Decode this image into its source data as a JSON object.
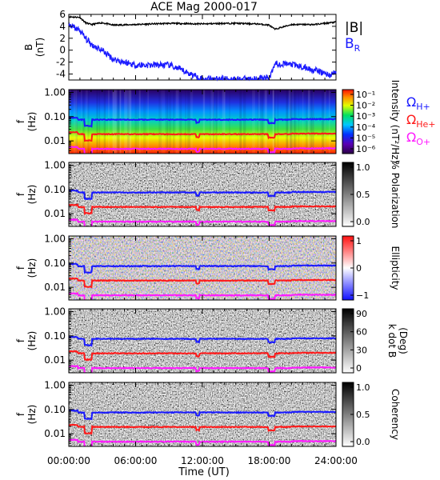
{
  "title": "ACE Mag 2000-017",
  "xaxis": {
    "label": "Time (UT)",
    "ticks": [
      "00:00:00",
      "06:00:00",
      "12:00:00",
      "18:00:00",
      "24:00:00"
    ],
    "range_hours": [
      0,
      24
    ]
  },
  "colors": {
    "B_total": "#000000",
    "B_R": "#1a1aff",
    "H_plus": "#1a1aff",
    "He_plus": "#ff1a1a",
    "O_plus": "#ff1aff"
  },
  "legend": {
    "B_total": "|B|",
    "B_R_main": "B",
    "B_R_sub": "R",
    "omega": "Ω",
    "H_plus_sub": "H+",
    "He_plus_sub": "He+",
    "O_plus_sub": "O+"
  },
  "panels": [
    {
      "id": "field",
      "ylabel_top": "B",
      "ylabel_bottom": "(nT)",
      "yticks": [
        "-4",
        "-2",
        "0",
        "2",
        "4",
        "6"
      ]
    },
    {
      "id": "intensity",
      "ylabel_top": "f",
      "ylabel_bottom": "(Hz)",
      "yticks": [
        "0.01",
        "0.10",
        "1.00"
      ],
      "colorbar_label": "Intensity (nT²/Hz)",
      "colorbar_ticks": [
        "10⁻¹",
        "10⁻²",
        "10⁻³",
        "10⁻⁴",
        "10⁻⁵",
        "10⁻⁶"
      ],
      "colormap": "rainbow"
    },
    {
      "id": "polarization",
      "ylabel_top": "f",
      "ylabel_bottom": "(Hz)",
      "yticks": [
        "0.01",
        "0.10",
        "1.00"
      ],
      "colorbar_label": "% Polarization",
      "colorbar_ticks": [
        "1.0",
        "0.5",
        "0.0"
      ],
      "colormap": "gray"
    },
    {
      "id": "ellipticity",
      "ylabel_top": "f",
      "ylabel_bottom": "(Hz)",
      "yticks": [
        "0.01",
        "0.10",
        "1.00"
      ],
      "colorbar_label": "Ellipticity",
      "colorbar_ticks": [
        "1",
        "0",
        "−1"
      ],
      "colormap": "blue-white-red"
    },
    {
      "id": "kdotb",
      "ylabel_top": "f",
      "ylabel_bottom": "(Hz)",
      "yticks": [
        "0.01",
        "0.10",
        "1.00"
      ],
      "colorbar_label_top": "k dot B",
      "colorbar_label_bottom": "(Deg)",
      "colorbar_ticks": [
        "90",
        "60",
        "30",
        "0"
      ],
      "colormap": "gray"
    },
    {
      "id": "coherency",
      "ylabel_top": "f",
      "ylabel_bottom": "(Hz)",
      "yticks": [
        "0.01",
        "0.10",
        "1.00"
      ],
      "colorbar_label": "Coherency",
      "colorbar_ticks": [
        "1.0",
        "0.5",
        "0.0"
      ],
      "colormap": "gray"
    }
  ],
  "chart_data": {
    "type": "line",
    "title": "ACE Mag 2000-017",
    "xlabel": "Time (UT)",
    "ylabel": "B (nT)",
    "xlim": [
      0,
      24
    ],
    "ylim": [
      -5,
      6
    ],
    "x": [
      0,
      1,
      1.5,
      2,
      3,
      4,
      6,
      9,
      12,
      14,
      15,
      17,
      18,
      18.5,
      20,
      22,
      23.5,
      24
    ],
    "series": [
      {
        "name": "|B|",
        "values": [
          5.6,
          5.5,
          4.6,
          4.3,
          4.6,
          4.2,
          4.3,
          4.5,
          4.4,
          4.5,
          4.5,
          4.4,
          4.2,
          3.5,
          4.3,
          4.3,
          4.6,
          4.7
        ]
      },
      {
        "name": "BR",
        "values": [
          4.2,
          3.3,
          2.0,
          1.0,
          0.0,
          -1.5,
          -2.5,
          -2.5,
          -4.8,
          -4.8,
          -4.9,
          -4.8,
          -4.6,
          -2.2,
          -2.4,
          -3.3,
          -4.2,
          -3.6
        ]
      }
    ],
    "ion_gyrofrequencies_hz": {
      "H+": 0.075,
      "He+": 0.019,
      "O+": 0.0047
    }
  }
}
